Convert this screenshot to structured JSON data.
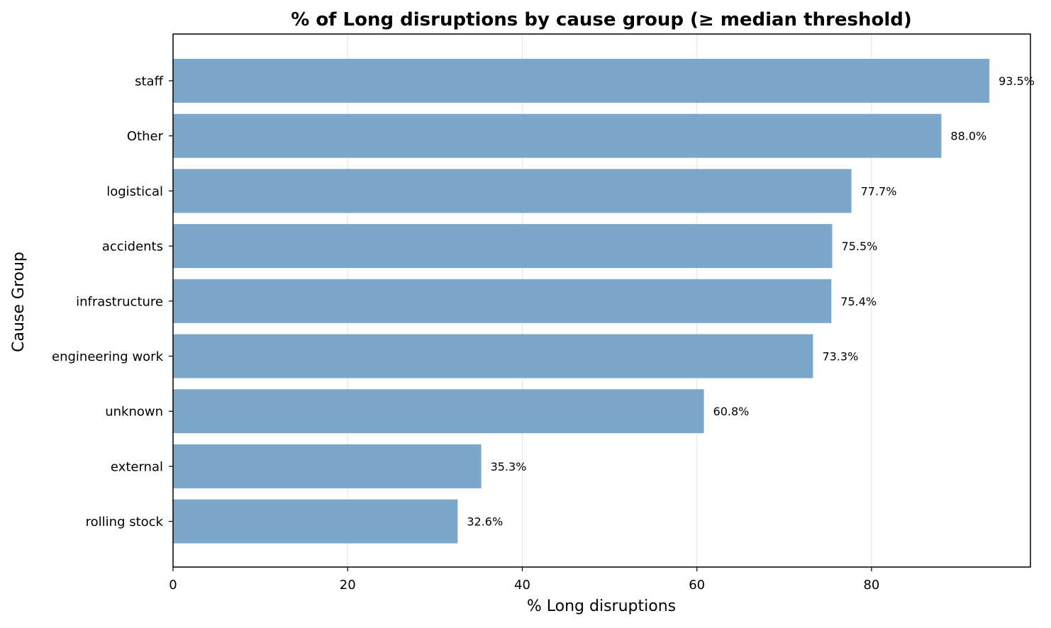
{
  "chart_data": {
    "type": "bar",
    "orientation": "horizontal",
    "title": "% of Long disruptions by cause group (≥ median threshold)",
    "xlabel": "% Long disruptions",
    "ylabel": "Cause Group",
    "categories": [
      "staff",
      "Other",
      "logistical",
      "accidents",
      "infrastructure",
      "engineering work",
      "unknown",
      "external",
      "rolling stock"
    ],
    "values": [
      93.5,
      88.0,
      77.7,
      75.5,
      75.4,
      73.3,
      60.8,
      35.3,
      32.6
    ],
    "value_labels": [
      "93.5%",
      "88.0%",
      "77.7%",
      "75.5%",
      "75.4%",
      "73.3%",
      "60.8%",
      "35.3%",
      "32.6%"
    ],
    "xticks": [
      0,
      20,
      40,
      60,
      80
    ],
    "xtick_labels": [
      "0",
      "20",
      "40",
      "60",
      "80"
    ],
    "xlim": [
      0,
      98.2
    ],
    "grid": "vertical",
    "bar_color": "#7ba7cb",
    "grid_color": "#e6e6e6"
  }
}
